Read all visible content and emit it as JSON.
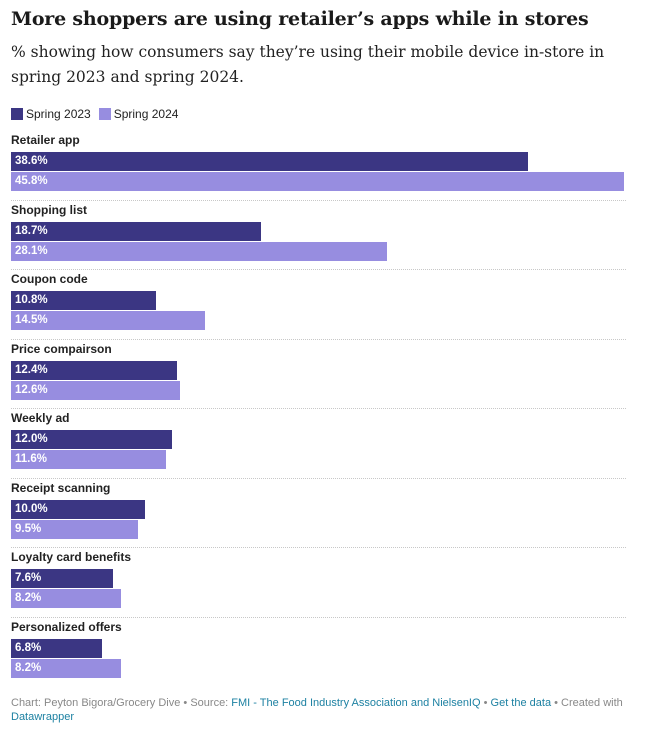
{
  "title": "More shoppers are using retailer’s apps while in stores",
  "subtitle": "% showing how consumers say they’re using their mobile device in-store in spring 2023 and spring 2024.",
  "colors": {
    "spring_2023": "#3b3683",
    "spring_2024": "#978de0"
  },
  "chart_data": {
    "type": "bar",
    "orientation": "horizontal",
    "categories": [
      "Retailer app",
      "Shopping list",
      "Coupon code",
      "Price compairson",
      "Weekly ad",
      "Receipt scanning",
      "Loyalty card benefits",
      "Personalized offers"
    ],
    "series": [
      {
        "name": "Spring 2023",
        "values": [
          38.6,
          18.7,
          10.8,
          12.4,
          12.0,
          10.0,
          7.6,
          6.8
        ],
        "labels": [
          "38.6%",
          "18.7%",
          "10.8%",
          "12.4%",
          "12.0%",
          "10.0%",
          "7.6%",
          "6.8%"
        ]
      },
      {
        "name": "Spring 2024",
        "values": [
          45.8,
          28.1,
          14.5,
          12.6,
          11.6,
          9.5,
          8.2,
          8.2
        ],
        "labels": [
          "45.8%",
          "28.1%",
          "14.5%",
          "12.6%",
          "11.6%",
          "9.5%",
          "8.2%",
          "8.2%"
        ]
      }
    ],
    "xlim": [
      0,
      45.8
    ],
    "legend": "top-left",
    "grid": false
  },
  "footer": {
    "chart_credit": "Chart: Peyton Bigora/Grocery Dive",
    "sep": " • ",
    "source_prefix": "Source: ",
    "source_link": "FMI - The Food Industry Association and NielsenIQ",
    "get_data": "Get the data",
    "created_with": "Created with",
    "datawrapper": "Datawrapper"
  }
}
